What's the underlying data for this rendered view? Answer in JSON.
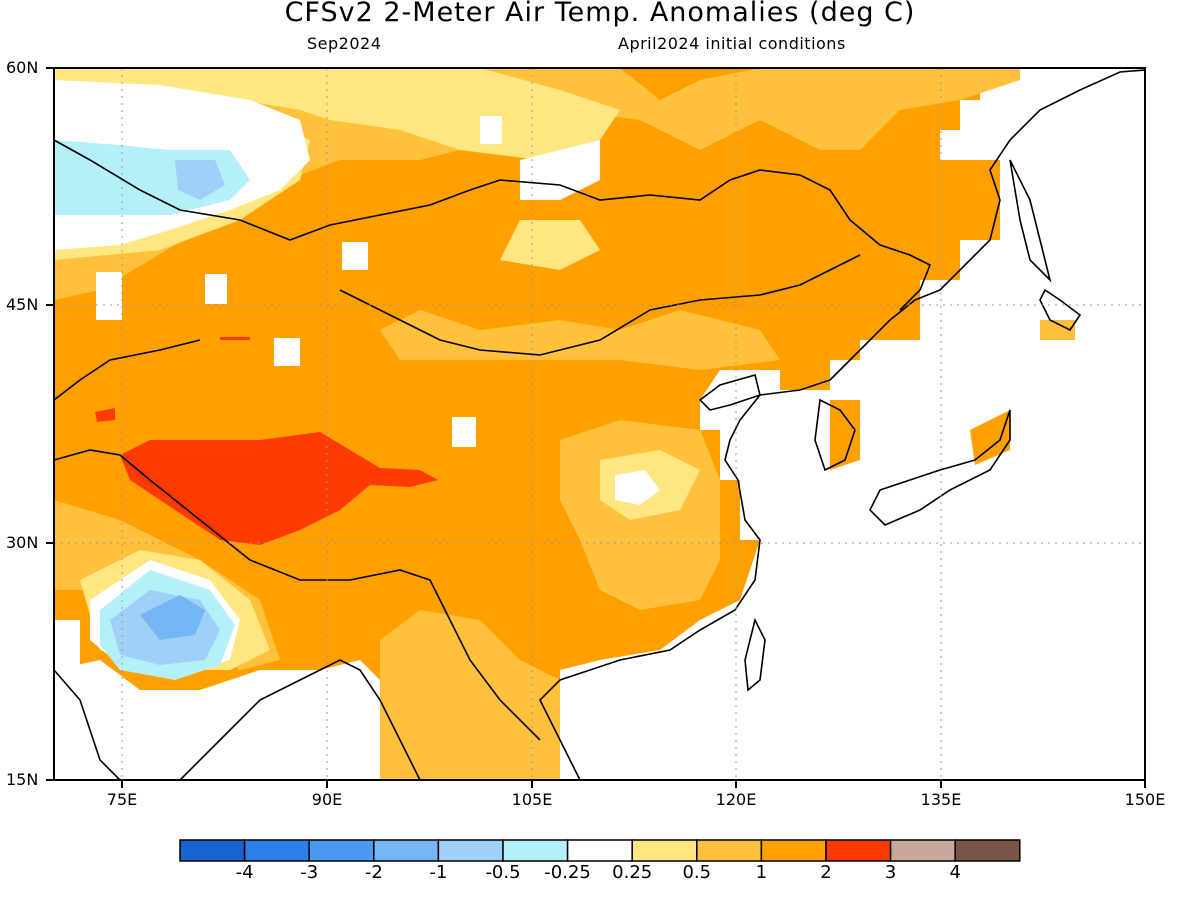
{
  "header": {
    "title": "CFSv2 2-Meter Air Temp. Anomalies (deg C)",
    "valid_month": "Sep2024",
    "initial_conditions": "April2024 initial conditions"
  },
  "axes": {
    "lat_labels": [
      "60N",
      "45N",
      "30N",
      "15N"
    ],
    "lon_labels": [
      "75E",
      "90E",
      "105E",
      "120E",
      "135E",
      "150E"
    ]
  },
  "colorbar": {
    "colors": [
      "#1664d0",
      "#2d7ee8",
      "#4a9af0",
      "#76b6f4",
      "#9ed0f8",
      "#b4f0fa",
      "#ffffff",
      "#ffe680",
      "#ffc03c",
      "#ffa000",
      "#ff3a00",
      "#c8a898",
      "#7a5448"
    ],
    "labels": [
      "-4",
      "-3",
      "-2",
      "-1",
      "-0.5",
      "-0.25",
      "0.25",
      "0.5",
      "1",
      "2",
      "3",
      "4"
    ]
  },
  "chart_data": {
    "type": "heatmap",
    "lon_range": [
      70,
      150
    ],
    "lat_range": [
      15,
      60
    ],
    "regions": [
      {
        "anomaly": "1 to 2",
        "description": "broad warm anomaly over China and Mongolia"
      },
      {
        "anomaly": "2 to 3",
        "description": "Tibetan Plateau maximum"
      },
      {
        "anomaly": "-1 to -2",
        "description": "central India"
      },
      {
        "anomaly": "-0.5 to -1",
        "description": "western Siberia / Kazakhstan"
      }
    ]
  }
}
